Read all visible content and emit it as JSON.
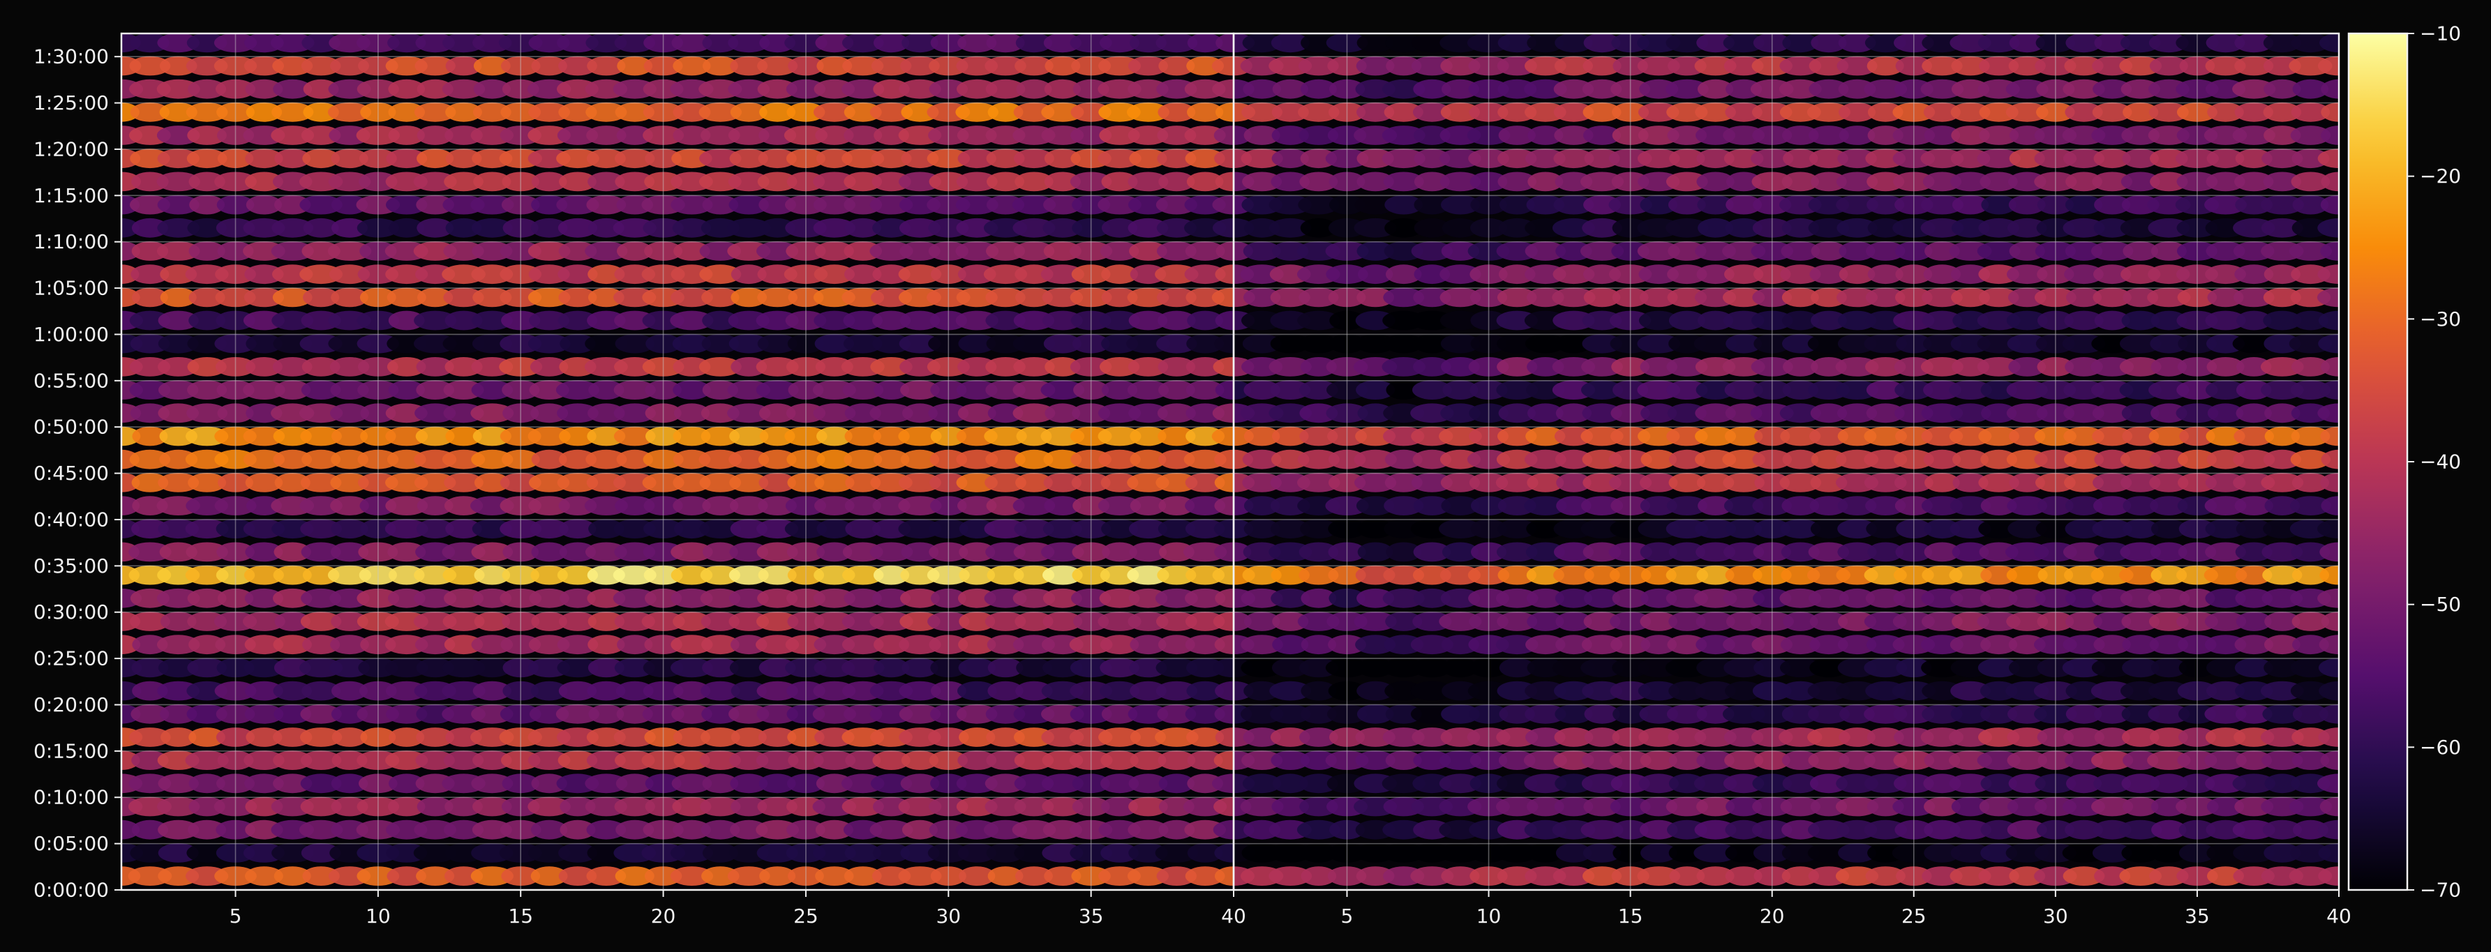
{
  "figure": {
    "background": "#060606",
    "text_color": "#f2f2f2",
    "frame_color": "#f2f2f2",
    "grid_color": "#c8c8c8"
  },
  "chart_data": {
    "type": "heatmap",
    "title": "",
    "xlabel": "",
    "ylabel": "",
    "colormap": "inferno",
    "grid": true,
    "panels": [
      {
        "name": "",
        "xlim": [
          1,
          40
        ],
        "xticks": [
          5,
          10,
          15,
          20,
          25,
          30,
          35,
          40
        ]
      },
      {
        "name": "",
        "xlim": [
          1,
          40
        ],
        "xticks": [
          5,
          10,
          15,
          20,
          25,
          30,
          35,
          40
        ]
      }
    ],
    "y": {
      "unit": "h:mm:ss",
      "lim": [
        "0:00:00",
        "1:32:30"
      ],
      "ticks": [
        "0:00:00",
        "0:05:00",
        "0:10:00",
        "0:15:00",
        "0:20:00",
        "0:25:00",
        "0:30:00",
        "0:35:00",
        "0:40:00",
        "0:45:00",
        "0:50:00",
        "0:55:00",
        "1:00:00",
        "1:05:00",
        "1:10:00",
        "1:15:00",
        "1:20:00",
        "1:25:00",
        "1:30:00"
      ]
    },
    "rows": {
      "time_min": [
        1.5,
        4,
        6.5,
        9,
        11.5,
        14,
        16.5,
        19,
        21.5,
        24,
        26.5,
        29,
        31.5,
        34,
        36.5,
        39,
        41.5,
        44,
        46.5,
        49,
        51.5,
        54,
        56.5,
        59,
        61.5,
        64,
        66.5,
        69,
        71.5,
        74,
        76.5,
        79,
        81.5,
        84,
        86.5,
        89,
        91.5
      ],
      "panel_1_level": [
        -32,
        -64,
        -49,
        -44,
        -52,
        -41,
        -35,
        -53,
        -57,
        -61,
        -43,
        -42,
        -46,
        -16,
        -48,
        -60,
        -49,
        -33,
        -30,
        -24,
        -48,
        -51,
        -39,
        -64,
        -56,
        -33,
        -38,
        -45,
        -60,
        -52,
        -42,
        -36,
        -43,
        -29,
        -45,
        -34,
        -56
      ],
      "panel_2_level": [
        -38,
        -67,
        -56,
        -50,
        -58,
        -47,
        -42,
        -60,
        -63,
        -66,
        -50,
        -48,
        -52,
        -24,
        -55,
        -65,
        -56,
        -40,
        -36,
        -31,
        -55,
        -58,
        -46,
        -66,
        -61,
        -42,
        -45,
        -52,
        -63,
        -58,
        -47,
        -42,
        -48,
        -35,
        -50,
        -40,
        -61
      ]
    },
    "colorbar": {
      "range": [
        -70,
        -10
      ],
      "ticks": [
        -70,
        -60,
        -50,
        -40,
        -30,
        -20,
        -10
      ],
      "tick_labels": [
        "−70",
        "−60",
        "−50",
        "−40",
        "−30",
        "−20",
        "−10"
      ]
    }
  }
}
